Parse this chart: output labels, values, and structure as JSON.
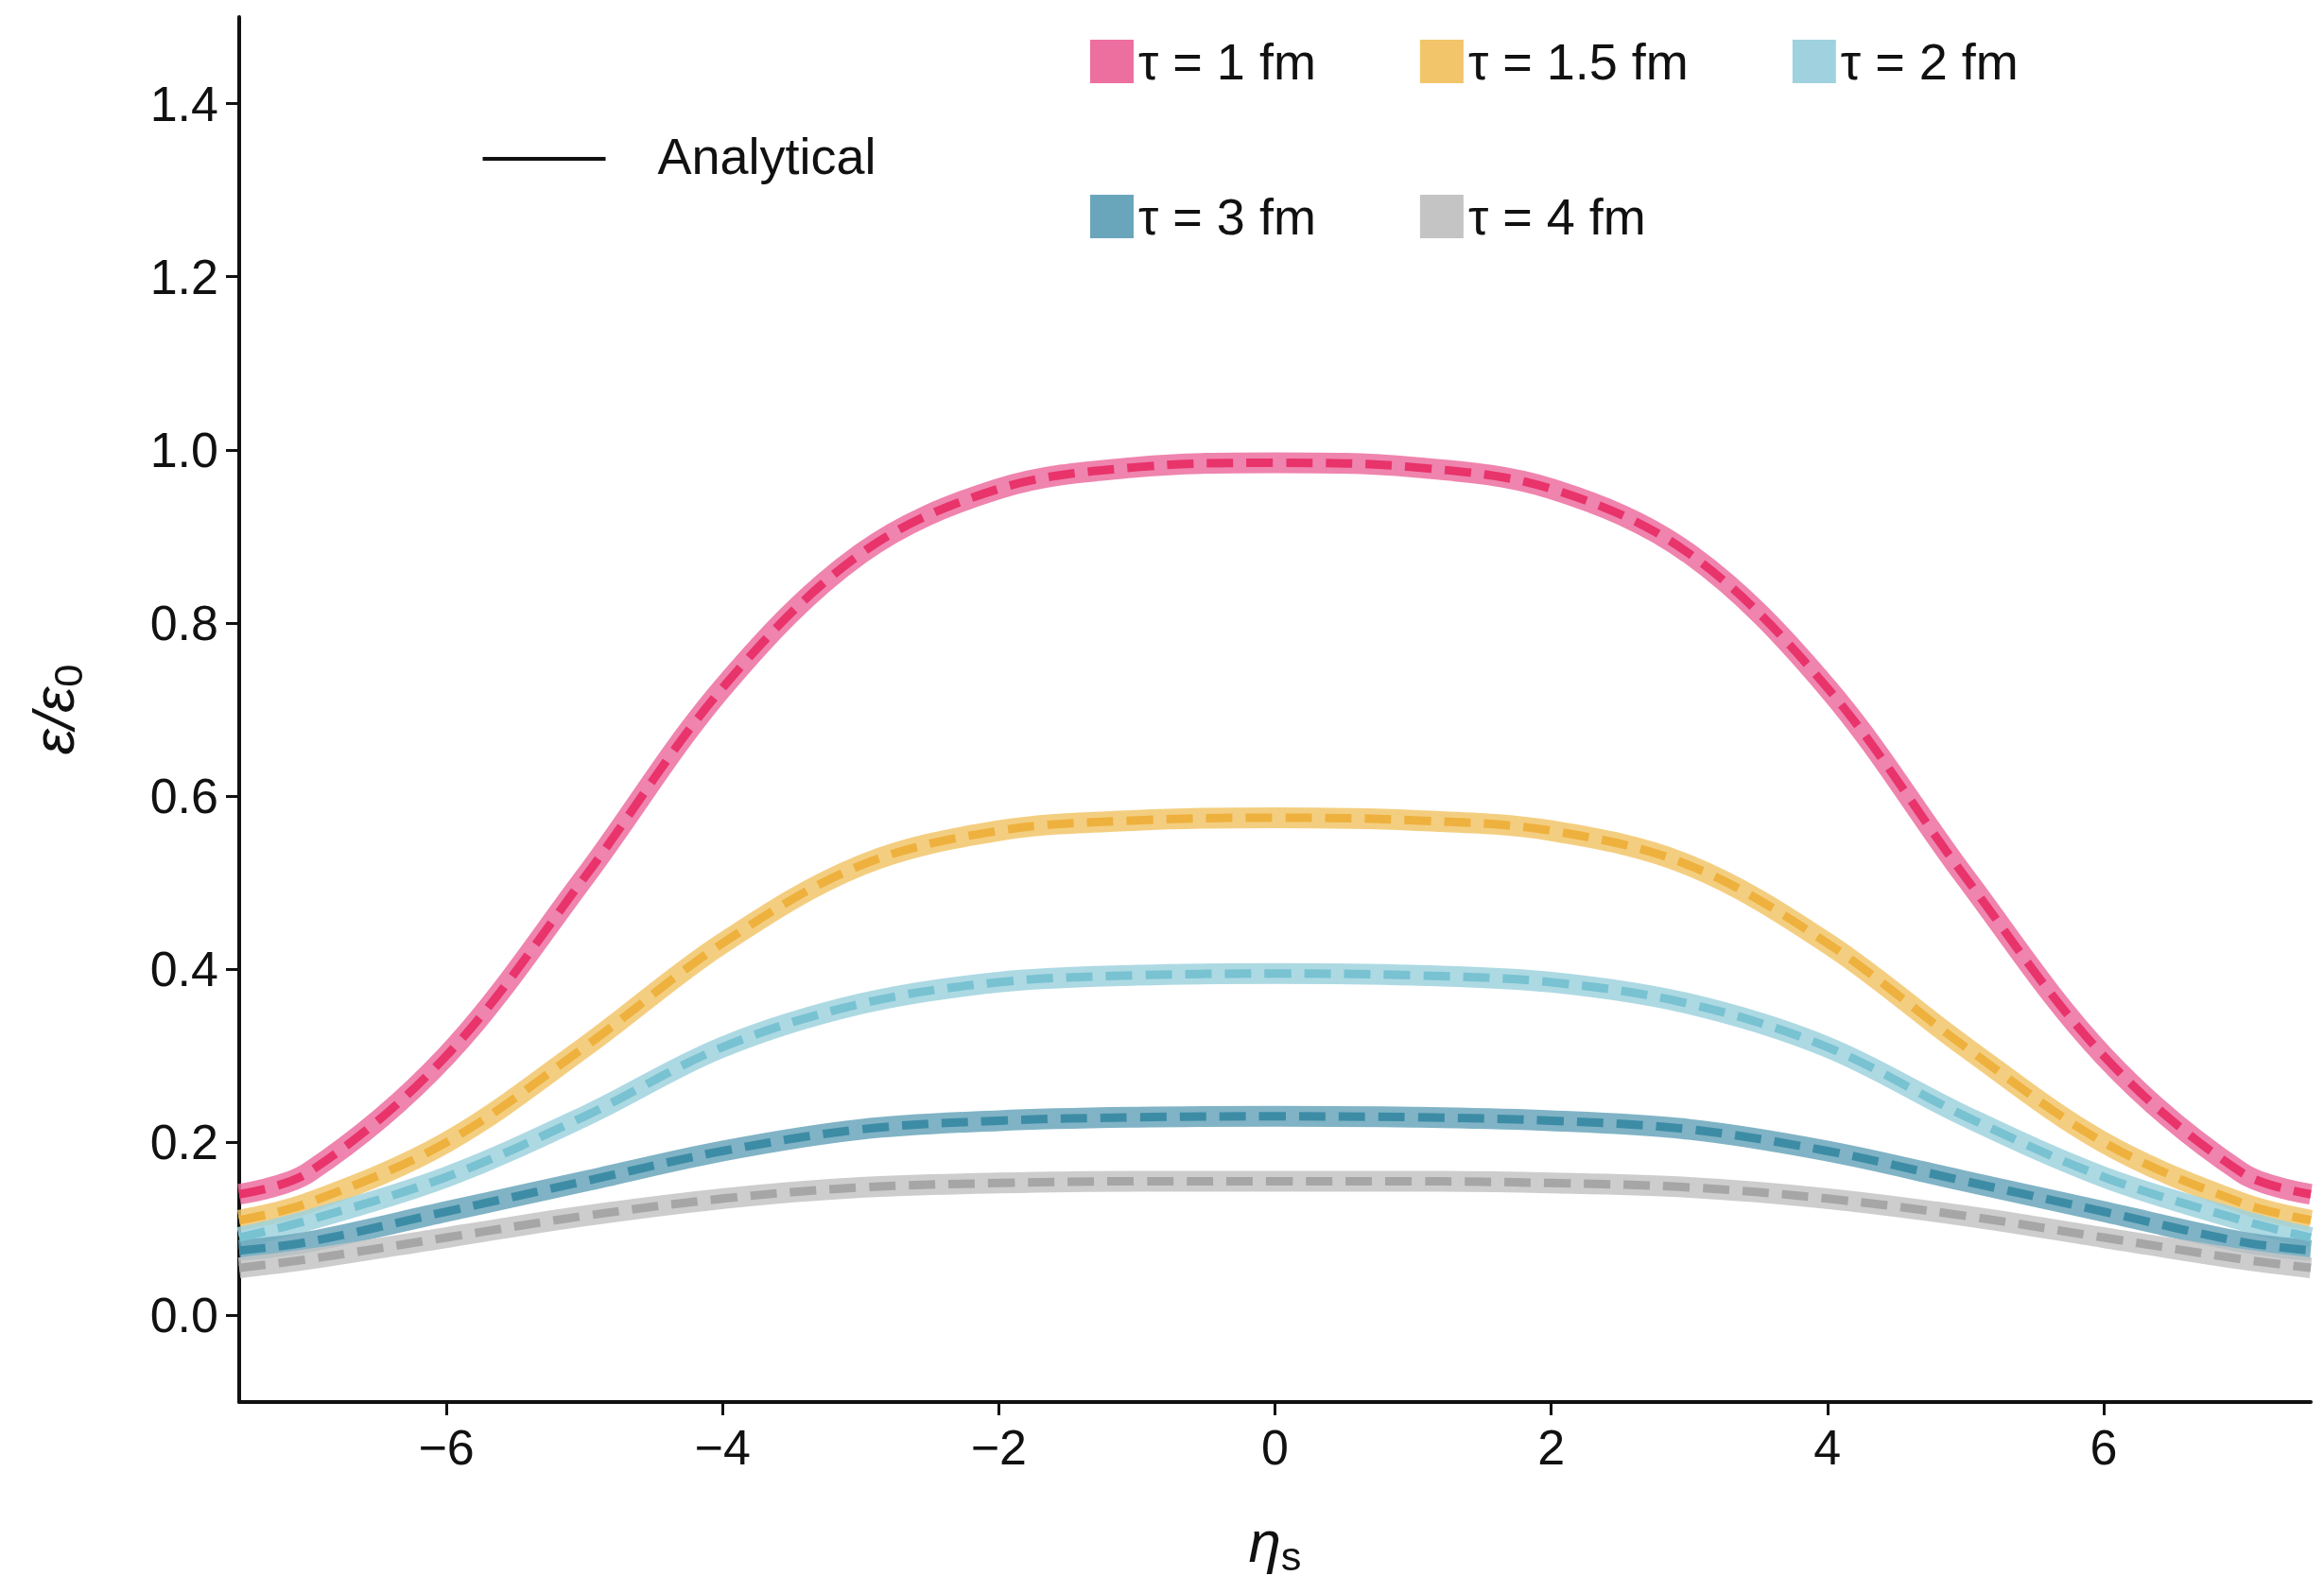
{
  "chart_data": {
    "type": "line",
    "xlabel": "η$_{s}$",
    "ylabel": "ε/ε$_{0}$",
    "x": [
      -7.5,
      -7,
      -6,
      -5,
      -4,
      -3,
      -2,
      -1,
      0,
      1,
      2,
      3,
      4,
      5,
      6,
      7,
      7.5
    ],
    "xlim": [
      -7.5,
      7.5
    ],
    "xticks": [
      -6,
      -4,
      -2,
      0,
      2,
      4,
      6
    ],
    "ylim": [
      -0.1,
      1.5
    ],
    "yticks": [
      {
        "value": 0,
        "label": "0.0"
      },
      0.2,
      0.4,
      0.6,
      0.8,
      {
        "value": 1,
        "label": "1.0"
      },
      1.2,
      1.4
    ],
    "grid": false,
    "legend": "top",
    "marker": "none",
    "annotations": [
      "Analytical"
    ],
    "series": [
      {
        "name": "τ = 1 fm",
        "color": "#ec6fa0",
        "line_style": "solid",
        "values": [
          0.14,
          0.165,
          0.3,
          0.506,
          0.725,
          0.88,
          0.955,
          0.98,
          0.985,
          0.98,
          0.955,
          0.88,
          0.725,
          0.506,
          0.3,
          0.165,
          0.14
        ]
      },
      {
        "name": "τ = 1.5 fm",
        "color": "#f2c56a",
        "line_style": "solid",
        "values": [
          0.11,
          0.13,
          0.2,
          0.31,
          0.43,
          0.52,
          0.56,
          0.572,
          0.575,
          0.572,
          0.56,
          0.52,
          0.43,
          0.31,
          0.2,
          0.13,
          0.11
        ]
      },
      {
        "name": "τ = 2 fm",
        "color": "#9fd2de",
        "line_style": "solid",
        "values": [
          0.09,
          0.11,
          0.16,
          0.23,
          0.31,
          0.36,
          0.385,
          0.393,
          0.395,
          0.393,
          0.385,
          0.36,
          0.31,
          0.23,
          0.16,
          0.11,
          0.09
        ]
      },
      {
        "name": "τ = 3 fm",
        "color": "#6aa6bb",
        "line_style": "solid",
        "values": [
          0.075,
          0.085,
          0.12,
          0.155,
          0.19,
          0.215,
          0.225,
          0.229,
          0.23,
          0.229,
          0.225,
          0.215,
          0.19,
          0.155,
          0.12,
          0.085,
          0.075
        ]
      },
      {
        "name": "τ = 4 fm",
        "color": "#c4c4c4",
        "line_style": "solid",
        "values": [
          0.055,
          0.065,
          0.09,
          0.115,
          0.135,
          0.148,
          0.153,
          0.155,
          0.155,
          0.155,
          0.153,
          0.148,
          0.135,
          0.115,
          0.09,
          0.065,
          0.055
        ]
      },
      {
        "color": "#e8336b",
        "line_style": "dashed",
        "values": [
          0.14,
          0.165,
          0.3,
          0.506,
          0.725,
          0.88,
          0.955,
          0.98,
          0.985,
          0.98,
          0.955,
          0.88,
          0.725,
          0.506,
          0.3,
          0.165,
          0.14
        ]
      },
      {
        "color": "#eeb13e",
        "line_style": "dashed",
        "values": [
          0.11,
          0.13,
          0.2,
          0.31,
          0.43,
          0.52,
          0.56,
          0.572,
          0.575,
          0.572,
          0.56,
          0.52,
          0.43,
          0.31,
          0.2,
          0.13,
          0.11
        ]
      },
      {
        "color": "#78c2d2",
        "line_style": "dashed",
        "values": [
          0.09,
          0.11,
          0.16,
          0.23,
          0.31,
          0.36,
          0.385,
          0.393,
          0.395,
          0.393,
          0.385,
          0.36,
          0.31,
          0.23,
          0.16,
          0.11,
          0.09
        ]
      },
      {
        "color": "#3d8ca6",
        "line_style": "dashed",
        "values": [
          0.075,
          0.085,
          0.12,
          0.155,
          0.19,
          0.215,
          0.225,
          0.229,
          0.23,
          0.229,
          0.225,
          0.215,
          0.19,
          0.155,
          0.12,
          0.085,
          0.075
        ]
      },
      {
        "color": "#a6a6a6",
        "line_style": "dashed",
        "values": [
          0.055,
          0.065,
          0.09,
          0.115,
          0.135,
          0.148,
          0.153,
          0.155,
          0.155,
          0.155,
          0.153,
          0.148,
          0.135,
          0.115,
          0.09,
          0.065,
          0.055
        ]
      }
    ]
  }
}
